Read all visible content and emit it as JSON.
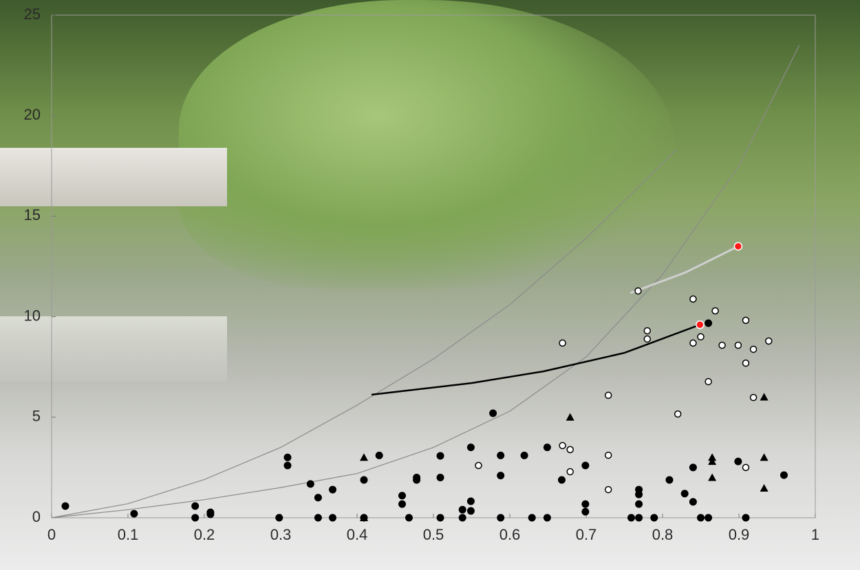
{
  "chart_data": {
    "type": "scatter",
    "xlim": [
      0,
      1
    ],
    "ylim": [
      0,
      25
    ],
    "xticks": [
      0,
      0.1,
      0.2,
      0.3,
      0.4,
      0.5,
      0.6,
      0.7,
      0.8,
      0.9,
      1
    ],
    "yticks": [
      0,
      5,
      10,
      15,
      20,
      25
    ],
    "series": [
      {
        "marker": "line",
        "color": "#8a8a8a",
        "width": 1.2,
        "x": [
          0,
          0.1,
          0.2,
          0.3,
          0.4,
          0.5,
          0.6,
          0.7,
          0.818
        ],
        "values": [
          0,
          0.7,
          1.9,
          3.5,
          5.6,
          7.9,
          10.6,
          13.9,
          18.3
        ]
      },
      {
        "marker": "line",
        "color": "#8a8a8a",
        "width": 1.2,
        "x": [
          0,
          0.1,
          0.2,
          0.3,
          0.4,
          0.5,
          0.6,
          0.7,
          0.8,
          0.9,
          0.979
        ],
        "values": [
          0,
          0.4,
          0.9,
          1.5,
          2.2,
          3.5,
          5.3,
          8.0,
          12.1,
          17.5,
          23.5
        ]
      },
      {
        "marker": "line",
        "color": "#000000",
        "width": 2.5,
        "x": [
          0.419,
          0.55,
          0.644,
          0.75,
          0.849
        ],
        "values": [
          6.12,
          6.7,
          7.28,
          8.2,
          9.6
        ]
      },
      {
        "marker": "line",
        "color": "#cfcfcf",
        "width": 3,
        "x": [
          0.758,
          0.83,
          0.899
        ],
        "values": [
          11.18,
          12.2,
          13.5
        ]
      },
      {
        "marker": "filled-circle",
        "color": "#000000",
        "x": [
          0.018,
          0.108,
          0.188,
          0.188,
          0.208,
          0.208,
          0.298,
          0.309,
          0.309,
          0.339,
          0.349,
          0.349,
          0.368,
          0.368,
          0.409,
          0.409,
          0.429,
          0.459,
          0.459,
          0.468,
          0.478,
          0.478,
          0.509,
          0.509,
          0.509,
          0.538,
          0.538,
          0.549,
          0.549,
          0.549,
          0.578,
          0.588,
          0.588,
          0.588,
          0.619,
          0.629,
          0.649,
          0.649,
          0.668,
          0.699,
          0.699,
          0.699,
          0.759,
          0.769,
          0.769,
          0.769,
          0.769,
          0.789,
          0.809,
          0.829,
          0.84,
          0.84,
          0.85,
          0.86,
          0.86,
          0.899,
          0.909,
          0.959
        ],
        "values": [
          0.58,
          0.2,
          0.58,
          0,
          0.27,
          0.17,
          0,
          3.0,
          2.6,
          1.68,
          1.0,
          0,
          1.4,
          0,
          1.88,
          0,
          3.1,
          1.1,
          0.68,
          0,
          2.0,
          1.88,
          3.08,
          2.0,
          0,
          0.4,
          0,
          3.5,
          0.82,
          0.34,
          5.2,
          3.1,
          2.1,
          0,
          3.1,
          0,
          3.5,
          0,
          1.88,
          2.6,
          0.68,
          0.3,
          0,
          1.4,
          1.16,
          0.68,
          0,
          0,
          1.88,
          1.2,
          2.5,
          0.79,
          0,
          0,
          9.68,
          2.8,
          0,
          2.12
        ]
      },
      {
        "marker": "open-circle",
        "color": "#000000",
        "x": [
          0.768,
          0.669,
          0.729,
          0.729,
          0.729,
          0.669,
          0.679,
          0.679,
          0.559,
          0.78,
          0.78,
          0.82,
          0.84,
          0.84,
          0.85,
          0.86,
          0.869,
          0.878,
          0.899,
          0.909,
          0.909,
          0.919,
          0.919,
          0.939,
          0.909
        ],
        "values": [
          11.28,
          8.69,
          6.09,
          3.11,
          1.4,
          3.59,
          3.39,
          2.29,
          2.6,
          9.3,
          8.89,
          5.16,
          10.88,
          8.69,
          9.0,
          6.77,
          10.29,
          8.58,
          8.58,
          9.82,
          7.69,
          8.38,
          5.98,
          8.79,
          2.5
        ]
      },
      {
        "marker": "triangle",
        "color": "#000000",
        "x": [
          0.409,
          0.409,
          0.679,
          0.865,
          0.865,
          0.865,
          0.933,
          0.933,
          0.933
        ],
        "values": [
          3.0,
          0,
          5.0,
          3.0,
          2.8,
          2.0,
          6.0,
          3.0,
          1.47
        ]
      },
      {
        "marker": "filled-circle",
        "color": "#ff1a1a",
        "x": [
          0.849,
          0.899
        ],
        "values": [
          9.6,
          13.5
        ]
      }
    ]
  }
}
